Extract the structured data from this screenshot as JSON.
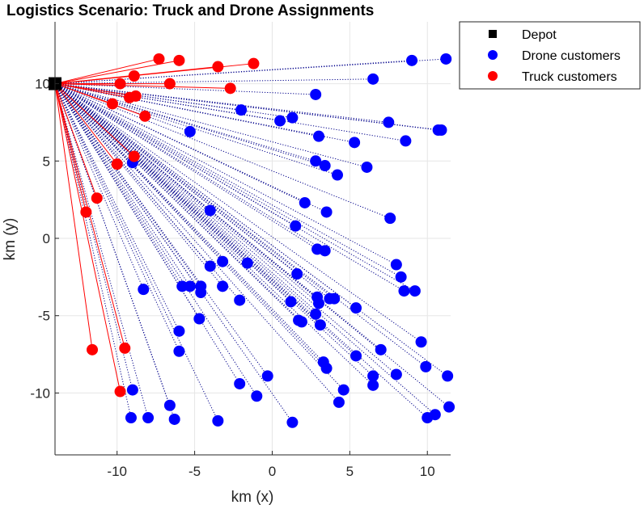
{
  "chart_data": {
    "type": "scatter",
    "title": "Logistics Scenario: Truck and Drone Assignments",
    "xlabel": "km (x)",
    "ylabel": "km (y)",
    "xlim": [
      -14,
      11.5
    ],
    "ylim": [
      -14,
      14
    ],
    "xticks": [
      -10,
      -5,
      0,
      5,
      10
    ],
    "yticks": [
      -10,
      -5,
      0,
      5,
      10
    ],
    "xtick_labels": [
      "-10",
      "-5",
      "0",
      "5",
      "10"
    ],
    "ytick_labels": [
      "-10",
      "-5",
      "0",
      "5",
      "10"
    ],
    "grid": true,
    "legend_position": "top-right-outside",
    "colors": {
      "depot": "#000000",
      "drone": "#0000ff",
      "truck": "#ff0000",
      "drone_route": "#00008b",
      "truck_route": "#ff0000",
      "grid": "#e6e6e6",
      "axis": "#262626"
    },
    "depot": {
      "name": "Depot",
      "x": -14,
      "y": 10
    },
    "series": [
      {
        "name": "Drone customers",
        "points": [
          [
            11.2,
            11.6
          ],
          [
            9.0,
            11.5
          ],
          [
            6.5,
            10.3
          ],
          [
            2.8,
            9.3
          ],
          [
            -2.0,
            8.3
          ],
          [
            0.5,
            7.6
          ],
          [
            1.3,
            7.8
          ],
          [
            7.5,
            7.5
          ],
          [
            10.7,
            7.0
          ],
          [
            10.9,
            7.0
          ],
          [
            -5.3,
            6.9
          ],
          [
            3.0,
            6.6
          ],
          [
            5.3,
            6.2
          ],
          [
            8.6,
            6.3
          ],
          [
            2.8,
            5.0
          ],
          [
            3.4,
            4.7
          ],
          [
            6.1,
            4.6
          ],
          [
            4.2,
            4.1
          ],
          [
            -9.0,
            4.9
          ],
          [
            2.1,
            2.3
          ],
          [
            -4.0,
            1.8
          ],
          [
            3.5,
            1.7
          ],
          [
            7.6,
            1.3
          ],
          [
            1.5,
            0.8
          ],
          [
            2.9,
            -0.7
          ],
          [
            3.4,
            -0.8
          ],
          [
            -1.6,
            -1.6
          ],
          [
            -3.2,
            -1.5
          ],
          [
            -4.0,
            -1.8
          ],
          [
            8.0,
            -1.7
          ],
          [
            8.3,
            -2.5
          ],
          [
            1.6,
            -2.3
          ],
          [
            -8.3,
            -3.3
          ],
          [
            -5.8,
            -3.1
          ],
          [
            -5.3,
            -3.1
          ],
          [
            -4.6,
            -3.1
          ],
          [
            -3.2,
            -3.1
          ],
          [
            -4.6,
            -3.5
          ],
          [
            8.5,
            -3.4
          ],
          [
            9.2,
            -3.4
          ],
          [
            1.2,
            -4.1
          ],
          [
            2.9,
            -3.8
          ],
          [
            3.7,
            -3.9
          ],
          [
            4.0,
            -3.9
          ],
          [
            3.0,
            -4.2
          ],
          [
            5.4,
            -4.5
          ],
          [
            2.8,
            -4.9
          ],
          [
            -4.7,
            -5.2
          ],
          [
            1.7,
            -5.3
          ],
          [
            1.9,
            -5.4
          ],
          [
            3.1,
            -5.6
          ],
          [
            -2.1,
            -4.0
          ],
          [
            -6.0,
            -6.0
          ],
          [
            9.6,
            -6.7
          ],
          [
            7.0,
            -7.2
          ],
          [
            -6.0,
            -7.3
          ],
          [
            5.4,
            -7.6
          ],
          [
            3.3,
            -8.0
          ],
          [
            9.9,
            -8.3
          ],
          [
            3.5,
            -8.4
          ],
          [
            -0.3,
            -8.9
          ],
          [
            6.5,
            -8.9
          ],
          [
            8.0,
            -8.8
          ],
          [
            11.3,
            -8.9
          ],
          [
            -2.1,
            -9.4
          ],
          [
            6.5,
            -9.5
          ],
          [
            4.6,
            -9.8
          ],
          [
            -9.0,
            -9.8
          ],
          [
            -1.0,
            -10.2
          ],
          [
            4.3,
            -10.6
          ],
          [
            -6.6,
            -10.8
          ],
          [
            11.4,
            -10.9
          ],
          [
            10.5,
            -11.4
          ],
          [
            10.0,
            -11.6
          ],
          [
            -9.1,
            -11.6
          ],
          [
            -8.0,
            -11.6
          ],
          [
            -6.3,
            -11.7
          ],
          [
            -3.5,
            -11.8
          ],
          [
            1.3,
            -11.9
          ]
        ]
      },
      {
        "name": "Truck customers",
        "points": [
          [
            -7.3,
            11.6
          ],
          [
            -6.0,
            11.5
          ],
          [
            -3.5,
            11.1
          ],
          [
            -1.2,
            11.3
          ],
          [
            -8.9,
            10.5
          ],
          [
            -9.8,
            10.0
          ],
          [
            -6.6,
            10.0
          ],
          [
            -2.7,
            9.7
          ],
          [
            -9.2,
            9.1
          ],
          [
            -8.8,
            9.2
          ],
          [
            -10.3,
            8.7
          ],
          [
            -8.2,
            7.9
          ],
          [
            -8.9,
            5.3
          ],
          [
            -10.0,
            4.8
          ],
          [
            -11.3,
            2.6
          ],
          [
            -12.0,
            1.7
          ],
          [
            -11.6,
            -7.2
          ],
          [
            -9.5,
            -7.1
          ],
          [
            -9.8,
            -9.9
          ]
        ]
      }
    ]
  }
}
